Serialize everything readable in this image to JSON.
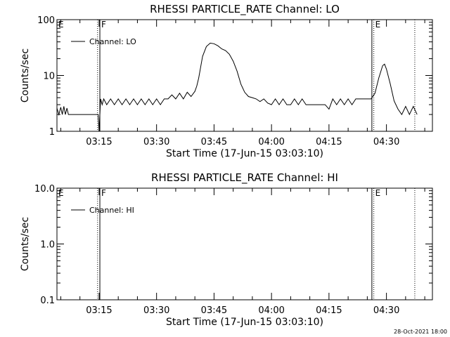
{
  "footer": {
    "timestamp": "28-Oct-2021 18:00"
  },
  "chart_data": [
    {
      "type": "line",
      "title": "RHESSI PARTICLE_RATE Channel: LO",
      "xlabel": "Start Time (17-Jun-15 03:03:10)",
      "ylabel": "Counts/sec",
      "y_scale": "log",
      "ylim": [
        1,
        100
      ],
      "yticks": [
        1,
        10,
        100
      ],
      "ytick_labels": [
        "1",
        "10",
        "100"
      ],
      "xlim_minutes": [
        "03:04",
        "04:42"
      ],
      "xticks": [
        "03:15",
        "03:30",
        "03:45",
        "04:00",
        "04:15",
        "04:30"
      ],
      "grid": false,
      "legend": {
        "placement": "top-left",
        "entries": [
          "Channel: LO"
        ]
      },
      "annotations": [
        {
          "time": "03:04",
          "label": "E",
          "style": "none"
        },
        {
          "time": "03:14.6",
          "label": "",
          "style": "dotted"
        },
        {
          "time": "03:15.2",
          "label": "F",
          "style": "solid"
        },
        {
          "time": "04:26.2",
          "label": "",
          "style": "solid"
        },
        {
          "time": "04:26.7",
          "label": "E",
          "style": "dotted"
        },
        {
          "time": "04:37.4",
          "label": "",
          "style": "dotted"
        }
      ],
      "series": [
        {
          "name": "Channel: LO",
          "x": [
            "03:04",
            "03:04.5",
            "03:05",
            "03:05.4",
            "03:05.8",
            "03:06.2",
            "03:06.6",
            "03:07",
            "03:07.4",
            "03:08",
            "03:10",
            "03:12",
            "03:14.8",
            "03:15",
            "03:15.4",
            "03:15.8",
            "03:16.2",
            "03:17",
            "03:18",
            "03:19",
            "03:20",
            "03:21",
            "03:22",
            "03:23",
            "03:24",
            "03:25",
            "03:26",
            "03:27",
            "03:28",
            "03:29",
            "03:30",
            "03:31",
            "03:32",
            "03:33",
            "03:34",
            "03:35",
            "03:36",
            "03:37",
            "03:38",
            "03:39",
            "03:40",
            "03:40.5",
            "03:41",
            "03:41.5",
            "03:42",
            "03:43",
            "03:44",
            "03:45",
            "03:46",
            "03:47",
            "03:48",
            "03:49",
            "03:50",
            "03:51",
            "03:52",
            "03:53",
            "03:54",
            "03:55",
            "03:56",
            "03:57",
            "03:58",
            "03:59",
            "04:00",
            "04:01",
            "04:02",
            "04:03",
            "04:04",
            "04:05",
            "04:06",
            "04:07",
            "04:08",
            "04:09",
            "04:10",
            "04:11",
            "04:12",
            "04:13",
            "04:14",
            "04:15",
            "04:16",
            "04:17",
            "04:18",
            "04:19",
            "04:20",
            "04:21",
            "04:22",
            "04:23",
            "04:24",
            "04:25",
            "04:26",
            "04:27",
            "04:28",
            "04:29",
            "04:29.5",
            "04:30",
            "04:31",
            "04:32",
            "04:33",
            "04:34",
            "04:35",
            "04:36",
            "04:37",
            "04:38"
          ],
          "y": [
            2.6,
            2.0,
            2.7,
            2.0,
            2.8,
            2.0,
            2.6,
            2.0,
            2.0,
            2.0,
            2.0,
            2.0,
            2.0,
            1.0,
            3.8,
            3.0,
            3.8,
            3.0,
            3.8,
            3.0,
            3.8,
            3.0,
            3.8,
            3.0,
            3.8,
            3.0,
            3.8,
            3.0,
            3.8,
            3.0,
            3.8,
            3.0,
            3.8,
            3.8,
            4.5,
            3.8,
            4.8,
            3.8,
            5.0,
            4.2,
            5.2,
            6.5,
            9.0,
            14.0,
            22.0,
            33.0,
            38.0,
            37.0,
            34.0,
            30.0,
            28.0,
            24.0,
            18.0,
            12.0,
            7.0,
            5.0,
            4.2,
            4.0,
            3.8,
            3.4,
            3.8,
            3.2,
            3.0,
            3.8,
            3.0,
            3.8,
            3.0,
            3.0,
            3.8,
            3.0,
            3.8,
            3.0,
            3.0,
            3.0,
            3.0,
            3.0,
            3.0,
            2.5,
            3.8,
            3.0,
            3.8,
            3.0,
            3.8,
            3.0,
            3.8,
            3.8,
            3.8,
            3.8,
            3.8,
            4.8,
            9.0,
            15.0,
            16.0,
            13.0,
            7.0,
            3.5,
            2.5,
            2.0,
            2.8,
            2.0,
            2.8,
            2.0
          ]
        }
      ]
    },
    {
      "type": "line",
      "title": "RHESSI PARTICLE_RATE Channel: HI",
      "xlabel": "Start Time (17-Jun-15 03:03:10)",
      "ylabel": "Counts/sec",
      "y_scale": "log",
      "ylim": [
        0.1,
        10
      ],
      "yticks": [
        0.1,
        1,
        10
      ],
      "ytick_labels": [
        "0.1",
        "1.0",
        "10.0"
      ],
      "xlim_minutes": [
        "03:04",
        "04:42"
      ],
      "xticks": [
        "03:15",
        "03:30",
        "03:45",
        "04:00",
        "04:15",
        "04:30"
      ],
      "grid": false,
      "legend": {
        "placement": "top-left",
        "entries": [
          "Channel: HI"
        ]
      },
      "annotations": [
        {
          "time": "03:04",
          "label": "E",
          "style": "none"
        },
        {
          "time": "03:14.6",
          "label": "",
          "style": "dotted"
        },
        {
          "time": "03:15.2",
          "label": "F",
          "style": "solid"
        },
        {
          "time": "04:26.2",
          "label": "",
          "style": "solid"
        },
        {
          "time": "04:26.7",
          "label": "E",
          "style": "dotted"
        },
        {
          "time": "04:37.4",
          "label": "",
          "style": "dotted"
        }
      ],
      "series": [
        {
          "name": "Channel: HI",
          "x": [],
          "y": []
        }
      ]
    }
  ]
}
